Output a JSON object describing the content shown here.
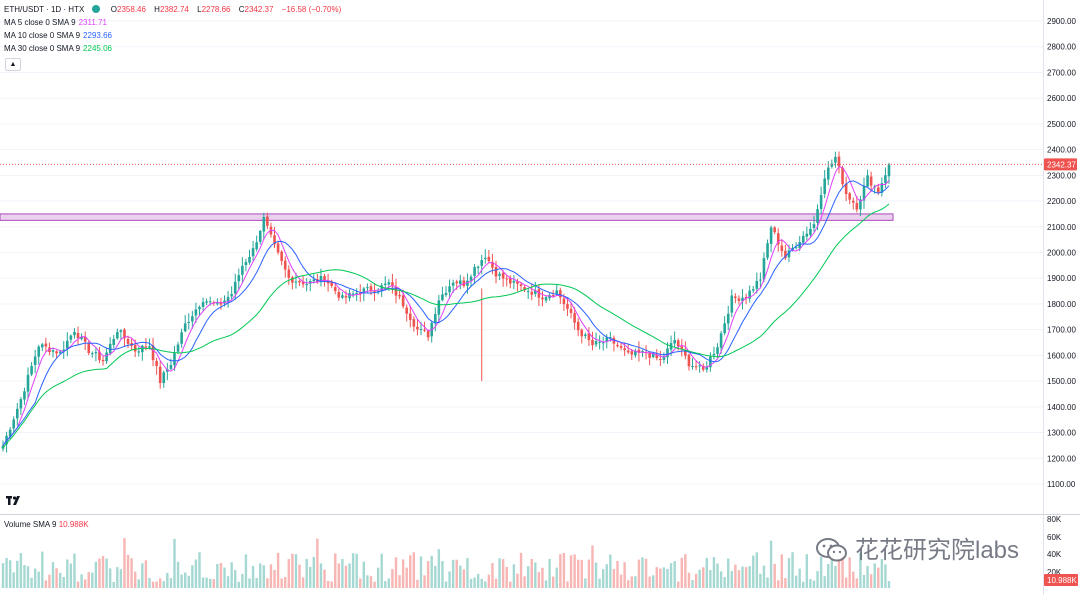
{
  "header": {
    "symbol": "ETH/USDT · 1D · HTX",
    "open_label": "O",
    "open": "2358.46",
    "high_label": "H",
    "high": "2382.74",
    "low_label": "L",
    "low": "2278.66",
    "close_label": "C",
    "close": "2342.37",
    "change": "−16.58 (−0.70%)"
  },
  "indicators": [
    {
      "label": "MA 5 close 0 SMA 9",
      "value": "2311.71",
      "color": "#e040fb"
    },
    {
      "label": "MA 10 close 0 SMA 9",
      "value": "2293.66",
      "color": "#2962ff"
    },
    {
      "label": "MA 30 close 0 SMA 9",
      "value": "2245.06",
      "color": "#00c853"
    }
  ],
  "collapse_icon": "chevron-up-icon",
  "volume_legend": {
    "label": "Volume SMA 9",
    "value": "10.988K"
  },
  "watermark": "花花研究院labs",
  "colors": {
    "up": "#26a69a",
    "down": "#ef5350",
    "zone": "#e1bee7",
    "zone_border": "#ab47bc"
  },
  "chart_data": {
    "type": "candlestick",
    "price_axis": {
      "min": 1100,
      "max": 2900,
      "ticks": [
        "2900.00",
        "2800.00",
        "2700.00",
        "2600.00",
        "2500.00",
        "2400.00",
        "2300.00",
        "2200.00",
        "2100.00",
        "2000.00",
        "1900.00",
        "1800.00",
        "1700.00",
        "1600.00",
        "1500.00",
        "1400.00",
        "1300.00",
        "1200.00",
        "1100.00"
      ]
    },
    "last_price": "2342.37",
    "resistance_zone": [
      2125,
      2150
    ],
    "anchors": [
      [
        0,
        1250
      ],
      [
        5,
        1430
      ],
      [
        10,
        1640
      ],
      [
        16,
        1610
      ],
      [
        20,
        1700
      ],
      [
        24,
        1620
      ],
      [
        28,
        1580
      ],
      [
        32,
        1700
      ],
      [
        37,
        1620
      ],
      [
        41,
        1640
      ],
      [
        44,
        1500
      ],
      [
        47,
        1570
      ],
      [
        51,
        1720
      ],
      [
        56,
        1820
      ],
      [
        60,
        1790
      ],
      [
        64,
        1840
      ],
      [
        67,
        1950
      ],
      [
        70,
        2010
      ],
      [
        73,
        2130
      ],
      [
        76,
        2020
      ],
      [
        80,
        1900
      ],
      [
        85,
        1880
      ],
      [
        90,
        1900
      ],
      [
        95,
        1820
      ],
      [
        100,
        1850
      ],
      [
        105,
        1860
      ],
      [
        108,
        1880
      ],
      [
        112,
        1800
      ],
      [
        116,
        1700
      ],
      [
        119,
        1680
      ],
      [
        122,
        1820
      ],
      [
        126,
        1890
      ],
      [
        129,
        1880
      ],
      [
        132,
        1940
      ],
      [
        135,
        1990
      ],
      [
        138,
        1920
      ],
      [
        141,
        1890
      ],
      [
        146,
        1860
      ],
      [
        151,
        1830
      ],
      [
        155,
        1850
      ],
      [
        158,
        1780
      ],
      [
        161,
        1700
      ],
      [
        165,
        1640
      ],
      [
        170,
        1660
      ],
      [
        175,
        1600
      ],
      [
        180,
        1610
      ],
      [
        184,
        1580
      ],
      [
        188,
        1660
      ],
      [
        192,
        1570
      ],
      [
        196,
        1540
      ],
      [
        200,
        1640
      ],
      [
        204,
        1820
      ],
      [
        208,
        1830
      ],
      [
        212,
        1900
      ],
      [
        215,
        2100
      ],
      [
        219,
        1980
      ],
      [
        223,
        2050
      ],
      [
        227,
        2110
      ],
      [
        230,
        2300
      ],
      [
        233,
        2370
      ],
      [
        236,
        2230
      ],
      [
        239,
        2180
      ],
      [
        242,
        2290
      ],
      [
        245,
        2240
      ],
      [
        248,
        2342
      ]
    ],
    "seed": 7
  }
}
